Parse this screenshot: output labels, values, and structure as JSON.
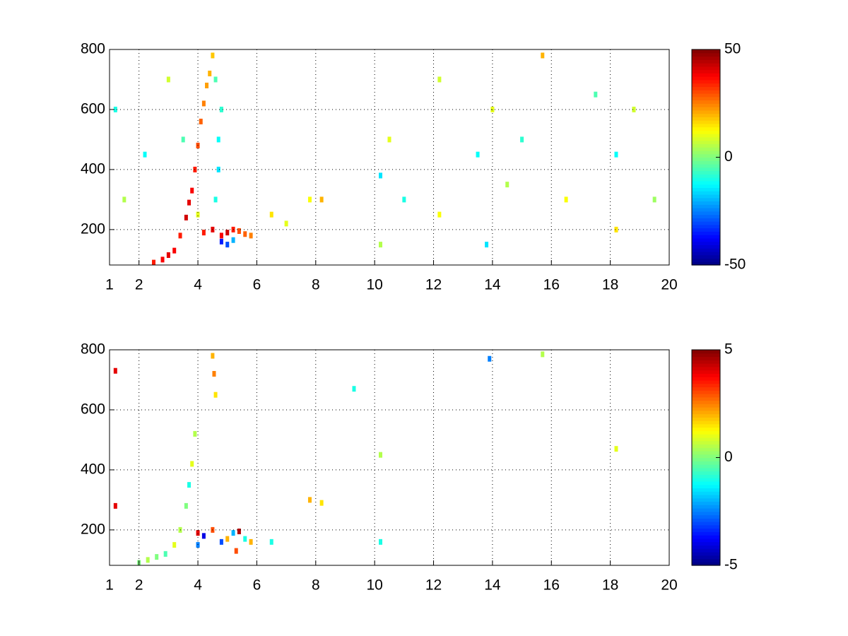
{
  "chart_data": [
    {
      "type": "heatmap",
      "colormap": "jet",
      "grid": true,
      "xlim": [
        1,
        20
      ],
      "ylim": [
        82,
        800
      ],
      "xticks": [
        1,
        2,
        4,
        6,
        8,
        10,
        12,
        14,
        16,
        18,
        20
      ],
      "yticks": [
        200,
        400,
        600,
        800
      ],
      "clim": [
        -50,
        50
      ],
      "cticks": [
        -50,
        0,
        50
      ],
      "x": [
        2.5,
        2.8,
        3.0,
        3.2,
        3.4,
        3.6,
        3.7,
        3.8,
        3.9,
        4.0,
        4.1,
        4.2,
        4.3,
        4.4,
        4.5,
        4.6,
        4.7,
        4.7,
        4.8,
        4.6,
        4.2,
        4.5,
        4.8,
        5.0,
        5.2,
        5.4,
        5.6,
        5.8,
        4.8,
        5.0,
        5.2,
        6.5,
        7.0,
        7.8,
        8.2,
        10.2,
        10.2,
        10.5,
        11.0,
        12.2,
        12.2,
        13.5,
        13.8,
        14.0,
        14.5,
        15.0,
        15.7,
        16.5,
        17.5,
        18.2,
        18.2,
        18.8,
        19.5,
        1.2,
        1.5,
        2.2,
        3.0,
        3.5,
        4.0
      ],
      "y": [
        90,
        100,
        115,
        130,
        180,
        240,
        290,
        330,
        400,
        480,
        560,
        620,
        680,
        720,
        780,
        300,
        400,
        500,
        600,
        700,
        190,
        200,
        180,
        190,
        200,
        195,
        185,
        180,
        160,
        150,
        165,
        250,
        220,
        300,
        300,
        380,
        150,
        500,
        300,
        700,
        250,
        450,
        150,
        600,
        350,
        500,
        780,
        300,
        650,
        200,
        450,
        600,
        300,
        600,
        300,
        450,
        700,
        500,
        250
      ],
      "values": [
        35,
        38,
        40,
        38,
        35,
        42,
        40,
        38,
        35,
        30,
        28,
        25,
        22,
        20,
        18,
        -10,
        -15,
        -12,
        -8,
        -5,
        35,
        40,
        38,
        42,
        35,
        30,
        28,
        25,
        -35,
        -30,
        -20,
        15,
        10,
        12,
        20,
        -15,
        5,
        10,
        -10,
        8,
        12,
        -12,
        -15,
        10,
        5,
        -8,
        20,
        12,
        -5,
        15,
        -12,
        8,
        3,
        -10,
        5,
        -12,
        8,
        -5,
        10
      ]
    },
    {
      "type": "heatmap",
      "colormap": "jet",
      "grid": true,
      "xlim": [
        1,
        20
      ],
      "ylim": [
        82,
        800
      ],
      "xticks": [
        1,
        2,
        4,
        6,
        8,
        10,
        12,
        14,
        16,
        18,
        20
      ],
      "yticks": [
        200,
        400,
        600,
        800
      ],
      "clim": [
        -5,
        5
      ],
      "cticks": [
        -5,
        0,
        5
      ],
      "x": [
        2.0,
        2.3,
        2.6,
        2.9,
        3.2,
        3.4,
        3.6,
        3.7,
        3.8,
        3.9,
        4.5,
        4.55,
        4.6,
        4.0,
        4.2,
        4.5,
        4.8,
        5.0,
        5.2,
        5.4,
        5.6,
        5.8,
        4.0,
        5.3,
        6.5,
        7.8,
        8.2,
        10.2,
        10.2,
        9.3,
        13.9,
        15.7,
        18.2,
        1.2,
        1.2
      ],
      "y": [
        90,
        100,
        110,
        120,
        150,
        200,
        280,
        350,
        420,
        520,
        780,
        720,
        650,
        190,
        180,
        200,
        160,
        170,
        190,
        195,
        170,
        160,
        150,
        130,
        160,
        300,
        290,
        450,
        160,
        670,
        770,
        785,
        470,
        730,
        280
      ],
      "values": [
        0,
        0.5,
        0,
        -0.5,
        1,
        0.5,
        0,
        -1,
        1,
        0.5,
        2,
        2.5,
        1.5,
        4,
        -4,
        3,
        -3,
        2,
        -2,
        4.5,
        -1,
        2,
        -2.5,
        3,
        -1,
        2,
        1.5,
        0.5,
        -1,
        -1,
        -2.5,
        0.5,
        1,
        4,
        4
      ]
    }
  ]
}
